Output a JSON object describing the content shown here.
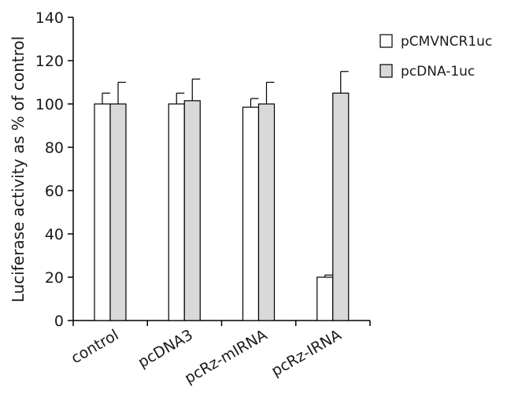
{
  "chart_data": {
    "type": "bar",
    "title": "",
    "xlabel": "",
    "ylabel": "Luciferase activity as % of control",
    "ylim": [
      0,
      140
    ],
    "yticks": [
      0,
      20,
      40,
      60,
      80,
      100,
      120,
      140
    ],
    "grid": false,
    "legend_position": "top-right",
    "categories": [
      "control",
      "pcDNA3",
      "pcRz-mIRNA",
      "pcRz-IRNA"
    ],
    "series": [
      {
        "name": "pCMVNCR1uc",
        "color": "#ffffff",
        "values": [
          100,
          100,
          98.5,
          20
        ],
        "errors": [
          5,
          5,
          4,
          1
        ]
      },
      {
        "name": "pcDNA-1uc",
        "color": "#d9d9d9",
        "values": [
          100,
          101.5,
          100,
          105
        ],
        "errors": [
          10,
          10,
          10,
          10
        ]
      }
    ]
  }
}
